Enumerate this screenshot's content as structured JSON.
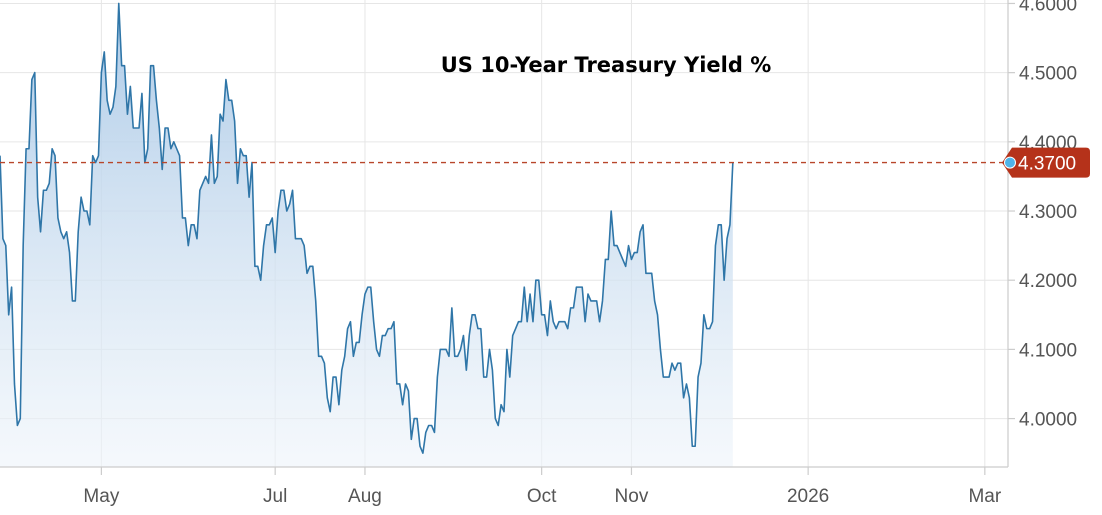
{
  "chart_data": {
    "type": "area",
    "title": "US 10-Year Treasury Yield %",
    "xlabel": "",
    "ylabel": "",
    "ylim": [
      3.93,
      4.605
    ],
    "xlim": [
      0,
      348
    ],
    "y_ticks": [
      {
        "value": 4.0,
        "label": "4.0000"
      },
      {
        "value": 4.1,
        "label": "4.1000"
      },
      {
        "value": 4.2,
        "label": "4.2000"
      },
      {
        "value": 4.3,
        "label": "4.3000"
      },
      {
        "value": 4.4,
        "label": "4.4000"
      },
      {
        "value": 4.5,
        "label": "4.5000"
      },
      {
        "value": 4.6,
        "label": "4.6000"
      }
    ],
    "x_ticks": [
      {
        "x": 35,
        "label": "May"
      },
      {
        "x": 95,
        "label": "Jul"
      },
      {
        "x": 126,
        "label": "Aug"
      },
      {
        "x": 187,
        "label": "Oct"
      },
      {
        "x": 218,
        "label": "Nov"
      },
      {
        "x": 279,
        "label": "2026"
      },
      {
        "x": 340,
        "label": "Mar"
      }
    ],
    "grid": true,
    "last_value": {
      "value": 4.37,
      "label": "4.3700"
    },
    "reference_line": 4.37,
    "colors": {
      "line": "#2f76a8",
      "area_top": "#a9c8e6",
      "area_bottom": "#eef4fa",
      "reference_line": "#b8462a",
      "badge": "#b5321a",
      "marker": "#4fb3e8",
      "grid": "#e6e6e6",
      "axis": "#cccccc"
    },
    "series": [
      {
        "points": [
          [
            0,
            4.38
          ],
          [
            1,
            4.26
          ],
          [
            2,
            4.25
          ],
          [
            3,
            4.15
          ],
          [
            4,
            4.19
          ],
          [
            5,
            4.05
          ],
          [
            6,
            3.99
          ],
          [
            7,
            4.0
          ],
          [
            8,
            4.25
          ],
          [
            9,
            4.39
          ],
          [
            10,
            4.39
          ],
          [
            11,
            4.49
          ],
          [
            12,
            4.5
          ],
          [
            13,
            4.32
          ],
          [
            14,
            4.27
          ],
          [
            15,
            4.33
          ],
          [
            16,
            4.33
          ],
          [
            17,
            4.34
          ],
          [
            18,
            4.39
          ],
          [
            19,
            4.38
          ],
          [
            20,
            4.29
          ],
          [
            21,
            4.27
          ],
          [
            22,
            4.26
          ],
          [
            23,
            4.27
          ],
          [
            24,
            4.24
          ],
          [
            25,
            4.17
          ],
          [
            26,
            4.17
          ],
          [
            27,
            4.27
          ],
          [
            28,
            4.32
          ],
          [
            29,
            4.3
          ],
          [
            30,
            4.3
          ],
          [
            31,
            4.28
          ],
          [
            32,
            4.38
          ],
          [
            33,
            4.37
          ],
          [
            34,
            4.38
          ],
          [
            35,
            4.5
          ],
          [
            36,
            4.53
          ],
          [
            37,
            4.46
          ],
          [
            38,
            4.44
          ],
          [
            39,
            4.45
          ],
          [
            40,
            4.48
          ],
          [
            41,
            4.6
          ],
          [
            42,
            4.51
          ],
          [
            43,
            4.51
          ],
          [
            44,
            4.44
          ],
          [
            45,
            4.48
          ],
          [
            46,
            4.42
          ],
          [
            47,
            4.42
          ],
          [
            48,
            4.42
          ],
          [
            49,
            4.47
          ],
          [
            50,
            4.37
          ],
          [
            51,
            4.39
          ],
          [
            52,
            4.51
          ],
          [
            53,
            4.51
          ],
          [
            54,
            4.46
          ],
          [
            55,
            4.42
          ],
          [
            56,
            4.36
          ],
          [
            57,
            4.42
          ],
          [
            58,
            4.42
          ],
          [
            59,
            4.39
          ],
          [
            60,
            4.4
          ],
          [
            61,
            4.39
          ],
          [
            62,
            4.38
          ],
          [
            63,
            4.29
          ],
          [
            64,
            4.29
          ],
          [
            65,
            4.25
          ],
          [
            66,
            4.28
          ],
          [
            67,
            4.28
          ],
          [
            68,
            4.26
          ],
          [
            69,
            4.33
          ],
          [
            70,
            4.34
          ],
          [
            71,
            4.35
          ],
          [
            72,
            4.34
          ],
          [
            73,
            4.41
          ],
          [
            74,
            4.34
          ],
          [
            75,
            4.35
          ],
          [
            76,
            4.44
          ],
          [
            77,
            4.43
          ],
          [
            78,
            4.49
          ],
          [
            79,
            4.46
          ],
          [
            80,
            4.46
          ],
          [
            81,
            4.43
          ],
          [
            82,
            4.34
          ],
          [
            83,
            4.39
          ],
          [
            84,
            4.38
          ],
          [
            85,
            4.38
          ],
          [
            86,
            4.32
          ],
          [
            87,
            4.37
          ],
          [
            88,
            4.22
          ],
          [
            89,
            4.22
          ],
          [
            90,
            4.2
          ],
          [
            91,
            4.25
          ],
          [
            92,
            4.28
          ],
          [
            93,
            4.28
          ],
          [
            94,
            4.29
          ],
          [
            95,
            4.24
          ],
          [
            96,
            4.3
          ],
          [
            97,
            4.33
          ],
          [
            98,
            4.33
          ],
          [
            99,
            4.3
          ],
          [
            100,
            4.31
          ],
          [
            101,
            4.33
          ],
          [
            102,
            4.26
          ],
          [
            103,
            4.26
          ],
          [
            104,
            4.26
          ],
          [
            105,
            4.25
          ],
          [
            106,
            4.21
          ],
          [
            107,
            4.22
          ],
          [
            108,
            4.22
          ],
          [
            109,
            4.17
          ],
          [
            110,
            4.09
          ],
          [
            111,
            4.09
          ],
          [
            112,
            4.08
          ],
          [
            113,
            4.03
          ],
          [
            114,
            4.01
          ],
          [
            115,
            4.06
          ],
          [
            116,
            4.06
          ],
          [
            117,
            4.02
          ],
          [
            118,
            4.07
          ],
          [
            119,
            4.09
          ],
          [
            120,
            4.13
          ],
          [
            121,
            4.14
          ],
          [
            122,
            4.09
          ],
          [
            123,
            4.11
          ],
          [
            124,
            4.11
          ],
          [
            125,
            4.15
          ],
          [
            126,
            4.18
          ],
          [
            127,
            4.19
          ],
          [
            128,
            4.19
          ],
          [
            129,
            4.14
          ],
          [
            130,
            4.1
          ],
          [
            131,
            4.09
          ],
          [
            132,
            4.12
          ],
          [
            133,
            4.12
          ],
          [
            134,
            4.13
          ],
          [
            135,
            4.13
          ],
          [
            136,
            4.14
          ],
          [
            137,
            4.05
          ],
          [
            138,
            4.05
          ],
          [
            139,
            4.02
          ],
          [
            140,
            4.05
          ],
          [
            141,
            4.04
          ],
          [
            142,
            3.97
          ],
          [
            143,
            4.0
          ],
          [
            144,
            4.0
          ],
          [
            145,
            3.96
          ],
          [
            146,
            3.95
          ],
          [
            147,
            3.98
          ],
          [
            148,
            3.99
          ],
          [
            149,
            3.99
          ],
          [
            150,
            3.98
          ],
          [
            151,
            4.06
          ],
          [
            152,
            4.1
          ],
          [
            153,
            4.1
          ],
          [
            154,
            4.1
          ],
          [
            155,
            4.09
          ],
          [
            156,
            4.16
          ],
          [
            157,
            4.09
          ],
          [
            158,
            4.09
          ],
          [
            159,
            4.1
          ],
          [
            160,
            4.12
          ],
          [
            161,
            4.07
          ],
          [
            162,
            4.12
          ],
          [
            163,
            4.15
          ],
          [
            164,
            4.15
          ],
          [
            165,
            4.13
          ],
          [
            166,
            4.13
          ],
          [
            167,
            4.06
          ],
          [
            168,
            4.06
          ],
          [
            169,
            4.1
          ],
          [
            170,
            4.07
          ],
          [
            171,
            4.0
          ],
          [
            172,
            3.99
          ],
          [
            173,
            4.02
          ],
          [
            174,
            4.01
          ],
          [
            175,
            4.1
          ],
          [
            176,
            4.06
          ],
          [
            177,
            4.12
          ],
          [
            178,
            4.13
          ],
          [
            179,
            4.14
          ],
          [
            180,
            4.14
          ],
          [
            181,
            4.19
          ],
          [
            182,
            4.14
          ],
          [
            183,
            4.18
          ],
          [
            184,
            4.14
          ],
          [
            185,
            4.2
          ],
          [
            186,
            4.2
          ],
          [
            187,
            4.15
          ],
          [
            188,
            4.15
          ],
          [
            189,
            4.12
          ],
          [
            190,
            4.17
          ],
          [
            191,
            4.14
          ],
          [
            192,
            4.13
          ],
          [
            193,
            4.14
          ],
          [
            194,
            4.14
          ],
          [
            195,
            4.14
          ],
          [
            196,
            4.13
          ],
          [
            197,
            4.16
          ],
          [
            198,
            4.16
          ],
          [
            199,
            4.19
          ],
          [
            200,
            4.19
          ],
          [
            201,
            4.19
          ],
          [
            202,
            4.14
          ],
          [
            203,
            4.18
          ],
          [
            204,
            4.17
          ],
          [
            205,
            4.17
          ],
          [
            206,
            4.17
          ],
          [
            207,
            4.14
          ],
          [
            208,
            4.17
          ],
          [
            209,
            4.23
          ],
          [
            210,
            4.23
          ],
          [
            211,
            4.3
          ],
          [
            212,
            4.25
          ],
          [
            213,
            4.25
          ],
          [
            214,
            4.24
          ],
          [
            215,
            4.23
          ],
          [
            216,
            4.22
          ],
          [
            217,
            4.25
          ],
          [
            218,
            4.23
          ],
          [
            219,
            4.24
          ],
          [
            220,
            4.24
          ],
          [
            221,
            4.27
          ],
          [
            222,
            4.28
          ],
          [
            223,
            4.21
          ],
          [
            224,
            4.21
          ],
          [
            225,
            4.21
          ],
          [
            226,
            4.17
          ],
          [
            227,
            4.15
          ],
          [
            228,
            4.1
          ],
          [
            229,
            4.06
          ],
          [
            230,
            4.06
          ],
          [
            231,
            4.06
          ],
          [
            232,
            4.08
          ],
          [
            233,
            4.07
          ],
          [
            234,
            4.08
          ],
          [
            235,
            4.08
          ],
          [
            236,
            4.03
          ],
          [
            237,
            4.05
          ],
          [
            238,
            4.03
          ],
          [
            239,
            3.96
          ],
          [
            240,
            3.96
          ],
          [
            241,
            4.06
          ],
          [
            242,
            4.08
          ],
          [
            243,
            4.15
          ],
          [
            244,
            4.13
          ],
          [
            245,
            4.13
          ],
          [
            246,
            4.14
          ],
          [
            247,
            4.25
          ],
          [
            248,
            4.28
          ],
          [
            249,
            4.28
          ],
          [
            250,
            4.2
          ],
          [
            251,
            4.26
          ],
          [
            252,
            4.28
          ],
          [
            253,
            4.37
          ]
        ]
      }
    ]
  }
}
